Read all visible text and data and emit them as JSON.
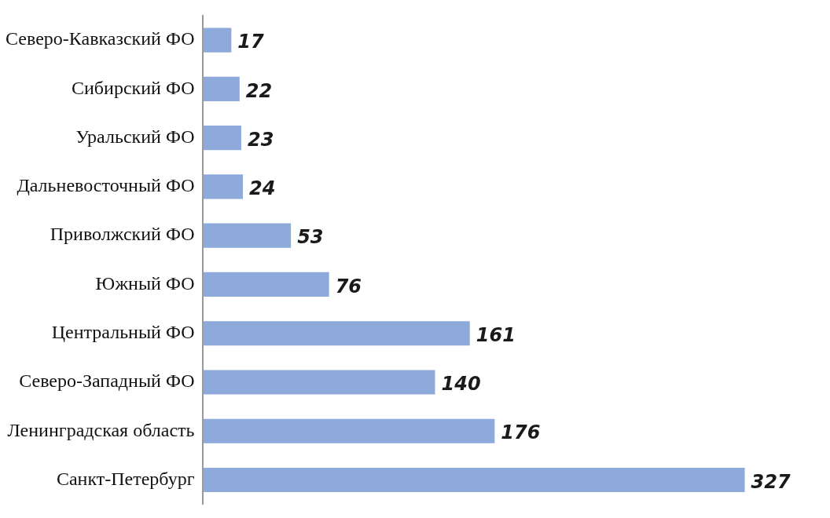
{
  "chart_data": {
    "type": "bar",
    "orientation": "horizontal",
    "categories": [
      "Северо-Кавказский ФО",
      "Сибирский ФО",
      "Уральский ФО",
      "Дальневосточный ФО",
      "Приволжский ФО",
      "Южный ФО",
      "Центральный ФО",
      "Северо-Западный ФО",
      "Ленинградская область",
      "Санкт-Петербург"
    ],
    "values": [
      17,
      22,
      23,
      24,
      53,
      76,
      161,
      140,
      176,
      327
    ],
    "color": "#8eaadb",
    "data_labels": true
  }
}
